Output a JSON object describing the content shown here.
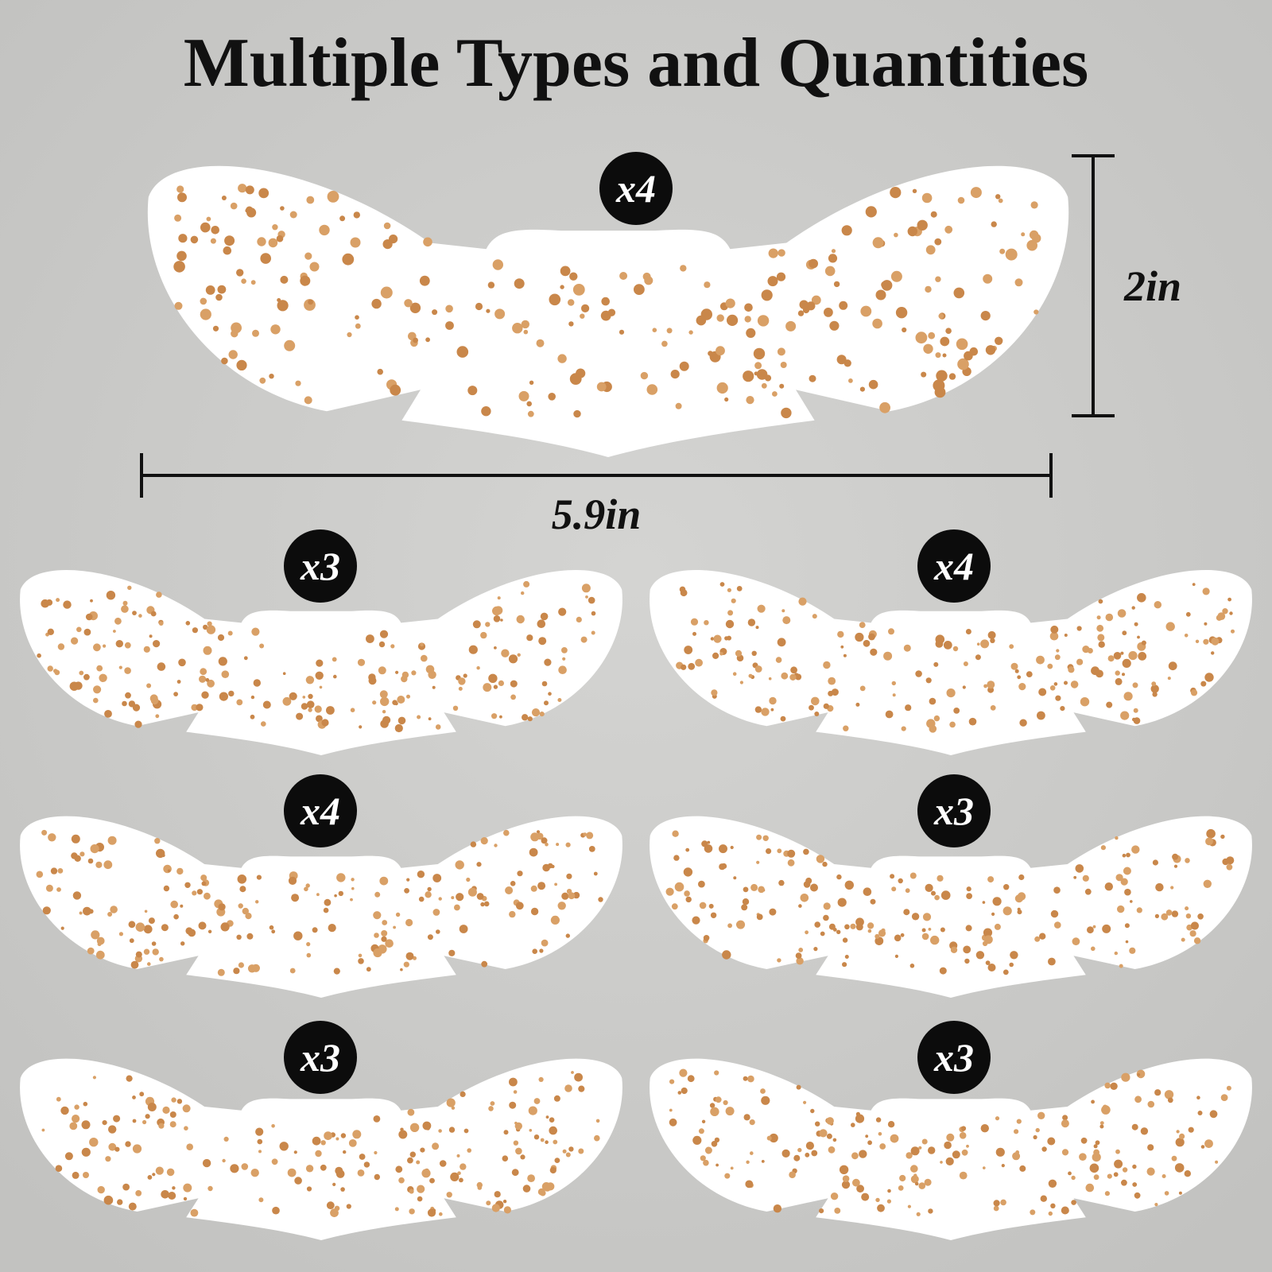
{
  "title": "Multiple Types and Quantities",
  "dimensions": {
    "height": "2in",
    "width": "5.9in"
  },
  "stickers": [
    {
      "quantity": "x4"
    },
    {
      "quantity": "x3"
    },
    {
      "quantity": "x4"
    },
    {
      "quantity": "x4"
    },
    {
      "quantity": "x3"
    },
    {
      "quantity": "x3"
    },
    {
      "quantity": "x3"
    }
  ]
}
